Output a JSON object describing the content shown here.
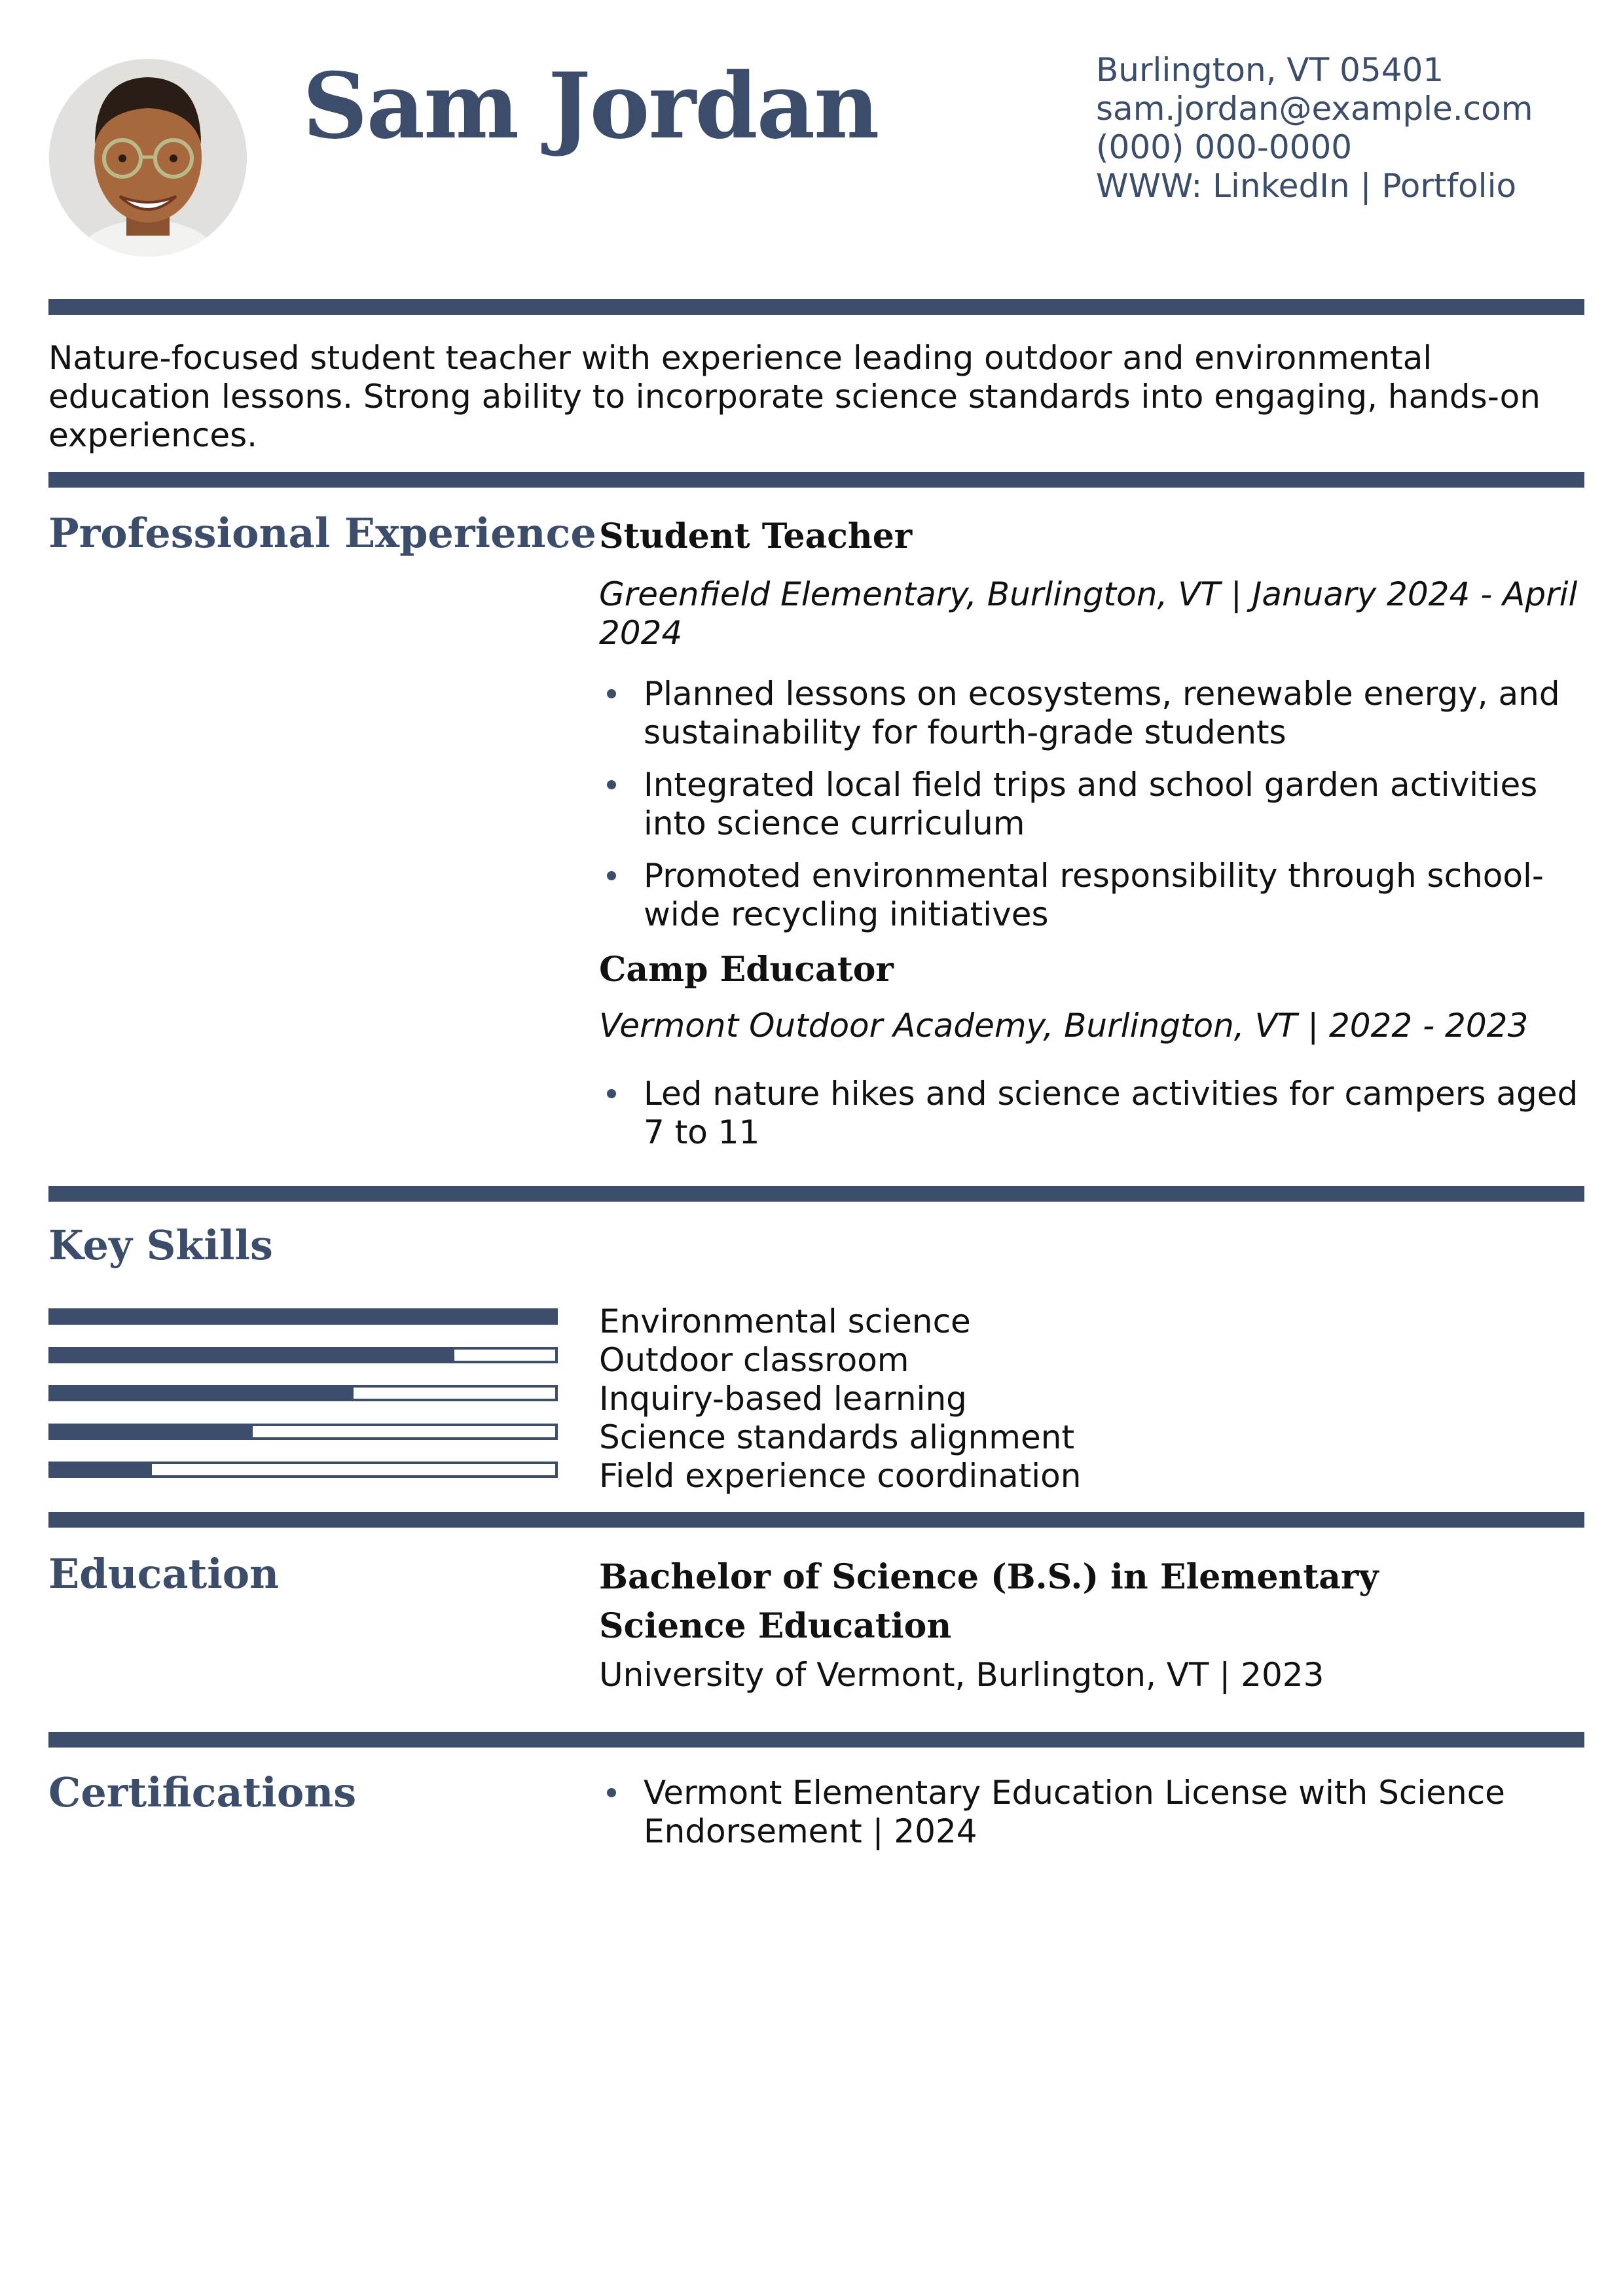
{
  "header": {
    "name": "Sam Jordan",
    "photo_alt": "profile photo",
    "contact": {
      "location": "Burlington, VT 05401",
      "email": "sam.jordan@example.com",
      "phone": "(000) 000-0000",
      "web_prefix": "WWW:",
      "linkedin": "LinkedIn",
      "separator": "|",
      "portfolio": "Portfolio"
    }
  },
  "summary": "Nature-focused student teacher with experience leading outdoor and environmental education lessons. Strong ability to incorporate science standards into engaging, hands-on experiences.",
  "experience": {
    "heading": "Professional Experience",
    "jobs": [
      {
        "title": "Student Teacher",
        "meta": "Greenfield Elementary, Burlington, VT | January 2024 - April 2024",
        "bullets": [
          "Planned lessons on ecosystems, renewable energy, and sustainability for fourth-grade students",
          "Integrated local field trips and school garden activities into science curriculum",
          "Promoted environmental responsibility through school-wide recycling initiatives"
        ]
      },
      {
        "title": "Camp Educator",
        "meta": "Vermont Outdoor Academy, Burlington, VT | 2022 - 2023",
        "bullets": [
          "Led nature hikes and science activities for campers aged 7 to 11"
        ]
      }
    ]
  },
  "skills": {
    "heading": "Key Skills",
    "items": [
      {
        "label": "Environmental science",
        "level": 1.0
      },
      {
        "label": "Outdoor classroom",
        "level": 0.8
      },
      {
        "label": "Inquiry-based learning",
        "level": 0.6
      },
      {
        "label": "Science standards alignment",
        "level": 0.4
      },
      {
        "label": "Field experience coordination",
        "level": 0.2
      }
    ]
  },
  "education": {
    "heading": "Education",
    "degree": "Bachelor of Science (B.S.) in Elementary Science Education",
    "school": "University of Vermont, Burlington, VT | 2023"
  },
  "certifications": {
    "heading": "Certifications",
    "items": [
      "Vermont Elementary Education License with Science Endorsement | 2024"
    ]
  },
  "colors": {
    "accent": "#3b4d6b",
    "text": "#111111"
  }
}
